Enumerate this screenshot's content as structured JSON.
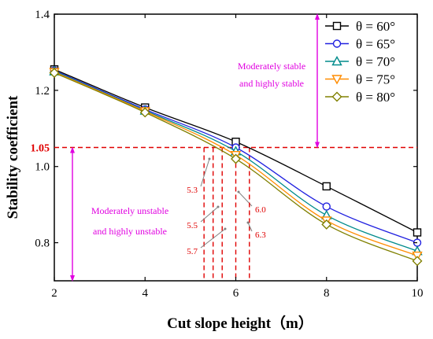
{
  "chart_data": {
    "type": "line",
    "title": "",
    "xlabel": "Cut slope height（m）",
    "ylabel": "Stability coefficient",
    "xlim": [
      2,
      10
    ],
    "ylim": [
      0.7,
      1.4
    ],
    "xticks": [
      2,
      4,
      6,
      8,
      10
    ],
    "yticks": [
      0.8,
      1.0,
      1.2,
      1.4
    ],
    "ytick_labels": [
      "0.8",
      "1.0",
      "1.2",
      "1.4"
    ],
    "grid": false,
    "legend_position": "top-right",
    "x": [
      2,
      4,
      6,
      8,
      10
    ],
    "series": [
      {
        "name": "θ = 60°",
        "values": [
          1.255,
          1.155,
          1.065,
          0.948,
          0.827
        ],
        "color": "#000000",
        "marker": "square"
      },
      {
        "name": "θ = 65°",
        "values": [
          1.252,
          1.15,
          1.05,
          0.895,
          0.8
        ],
        "color": "#2020e0",
        "marker": "circle"
      },
      {
        "name": "θ = 70°",
        "values": [
          1.25,
          1.147,
          1.04,
          0.872,
          0.778
        ],
        "color": "#008b8b",
        "marker": "triangle-up"
      },
      {
        "name": "θ = 75°",
        "values": [
          1.248,
          1.145,
          1.03,
          0.858,
          0.766
        ],
        "color": "#ff8c00",
        "marker": "triangle-down"
      },
      {
        "name": "θ = 80°",
        "values": [
          1.246,
          1.142,
          1.02,
          0.848,
          0.752
        ],
        "color": "#808000",
        "marker": "diamond"
      }
    ],
    "threshold": {
      "value": 1.05,
      "label": "1.05",
      "color": "#e00000"
    },
    "cut_heights": [
      {
        "x": 5.3,
        "label": "5.3"
      },
      {
        "x": 5.5,
        "label": "5.5"
      },
      {
        "x": 5.7,
        "label": "5.7"
      },
      {
        "x": 6.0,
        "label": "6.0"
      },
      {
        "x": 6.3,
        "label": "6.3"
      }
    ],
    "annotations": {
      "stable": [
        "Moderately stable",
        "and  highly stable"
      ],
      "unstable": [
        "Moderately unstable",
        "and  highly unstable"
      ],
      "color": "#e000e0"
    }
  }
}
